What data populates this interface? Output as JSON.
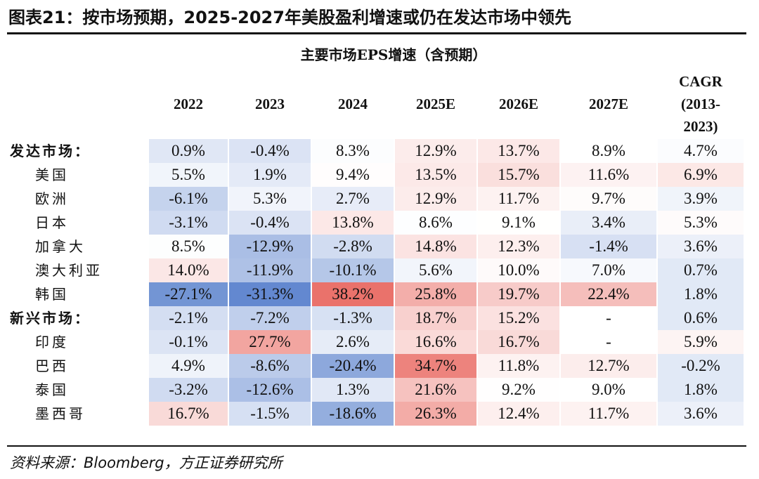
{
  "title": "图表21：按市场预期，2025-2027年美股盈利增速或仍在发达市场中领先",
  "chart_data": {
    "type": "table",
    "title": "主要市场EPS增速（含预期）",
    "columns": [
      "2022",
      "2023",
      "2024",
      "2025E",
      "2026E",
      "2027E"
    ],
    "cagr_header": [
      "CAGR",
      "(2013-",
      "2023)"
    ],
    "rows": [
      {
        "label": "发达市场：",
        "group": true,
        "values": [
          "0.9%",
          "-0.4%",
          "8.3%",
          "12.9%",
          "13.7%",
          "8.9%",
          "4.7%"
        ]
      },
      {
        "label": "美国",
        "group": false,
        "values": [
          "5.5%",
          "1.9%",
          "9.4%",
          "13.5%",
          "15.7%",
          "11.6%",
          "6.9%"
        ]
      },
      {
        "label": "欧洲",
        "group": false,
        "values": [
          "-6.1%",
          "5.3%",
          "2.7%",
          "12.9%",
          "11.7%",
          "9.7%",
          "3.9%"
        ]
      },
      {
        "label": "日本",
        "group": false,
        "values": [
          "-3.1%",
          "-0.4%",
          "13.8%",
          "8.6%",
          "9.1%",
          "3.4%",
          "5.3%"
        ]
      },
      {
        "label": "加拿大",
        "group": false,
        "values": [
          "8.5%",
          "-12.9%",
          "-2.8%",
          "14.8%",
          "12.3%",
          "-1.4%",
          "3.6%"
        ]
      },
      {
        "label": "澳大利亚",
        "group": false,
        "values": [
          "14.0%",
          "-11.9%",
          "-10.1%",
          "5.6%",
          "10.0%",
          "7.0%",
          "0.7%"
        ]
      },
      {
        "label": "韩国",
        "group": false,
        "values": [
          "-27.1%",
          "-31.3%",
          "38.2%",
          "25.8%",
          "19.7%",
          "22.4%",
          "1.8%"
        ]
      },
      {
        "label": "新兴市场：",
        "group": true,
        "values": [
          "-2.1%",
          "-7.2%",
          "-1.3%",
          "18.7%",
          "15.2%",
          "-",
          "0.6%"
        ]
      },
      {
        "label": "印度",
        "group": false,
        "values": [
          "-0.1%",
          "27.7%",
          "2.6%",
          "16.6%",
          "16.7%",
          "-",
          "5.9%"
        ]
      },
      {
        "label": "巴西",
        "group": false,
        "values": [
          "4.9%",
          "-8.6%",
          "-20.4%",
          "34.7%",
          "11.8%",
          "12.7%",
          "-0.2%"
        ]
      },
      {
        "label": "泰国",
        "group": false,
        "values": [
          "-3.2%",
          "-12.6%",
          "1.3%",
          "21.6%",
          "9.2%",
          "9.0%",
          "1.8%"
        ]
      },
      {
        "label": "墨西哥",
        "group": false,
        "values": [
          "16.7%",
          "-1.5%",
          "-18.6%",
          "26.3%",
          "12.4%",
          "11.7%",
          "3.6%"
        ]
      }
    ],
    "color_scale": {
      "negative": "#5b82cd",
      "neutral": "#ffffff",
      "positive": "#e96b63",
      "missing": "#ffffff"
    }
  },
  "source": "资料来源：Bloomberg，方正证券研究所"
}
